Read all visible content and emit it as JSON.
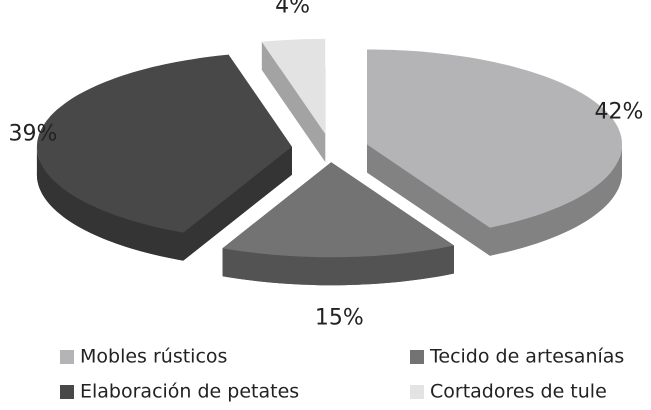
{
  "chart_data": {
    "type": "pie",
    "categories": [
      "Mobles rústicos",
      "Tecido de artesanías",
      "Elaboración de petates",
      "Cortadores de tule"
    ],
    "values": [
      42,
      15,
      39,
      4
    ],
    "value_labels": [
      "42%",
      "15%",
      "39%",
      "4%"
    ],
    "colors": [
      "#b4b4b6",
      "#737374",
      "#484848",
      "#e3e3e4"
    ]
  }
}
